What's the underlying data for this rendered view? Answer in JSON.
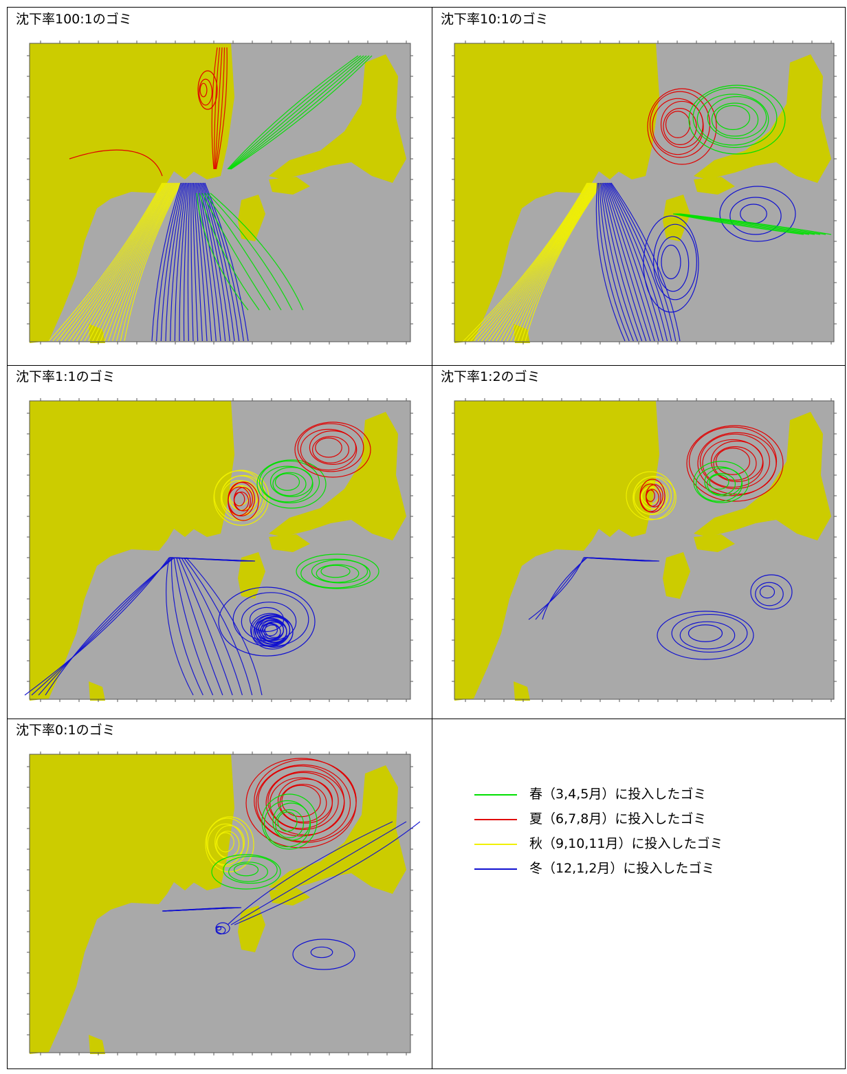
{
  "panels": [
    {
      "title": "沈下率100:1のゴミ"
    },
    {
      "title": "沈下率10:1のゴミ"
    },
    {
      "title": "沈下率1:1のゴミ"
    },
    {
      "title": "沈下率1:2のゴミ"
    },
    {
      "title": "沈下率0:1のゴミ"
    }
  ],
  "legend": [
    {
      "label": "春（3,4,5月）に投入したゴミ",
      "color": "#00e000"
    },
    {
      "label": "夏（6,7,8月）に投入したゴミ",
      "color": "#e00000"
    },
    {
      "label": "秋（9,10,11月）に投入したゴミ",
      "color": "#f0f000"
    },
    {
      "label": "冬（12,1,2月）に投入したゴミ",
      "color": "#1010d0"
    }
  ],
  "map_colors": {
    "sea": "#a9a9a9",
    "land": "#cccc00"
  }
}
